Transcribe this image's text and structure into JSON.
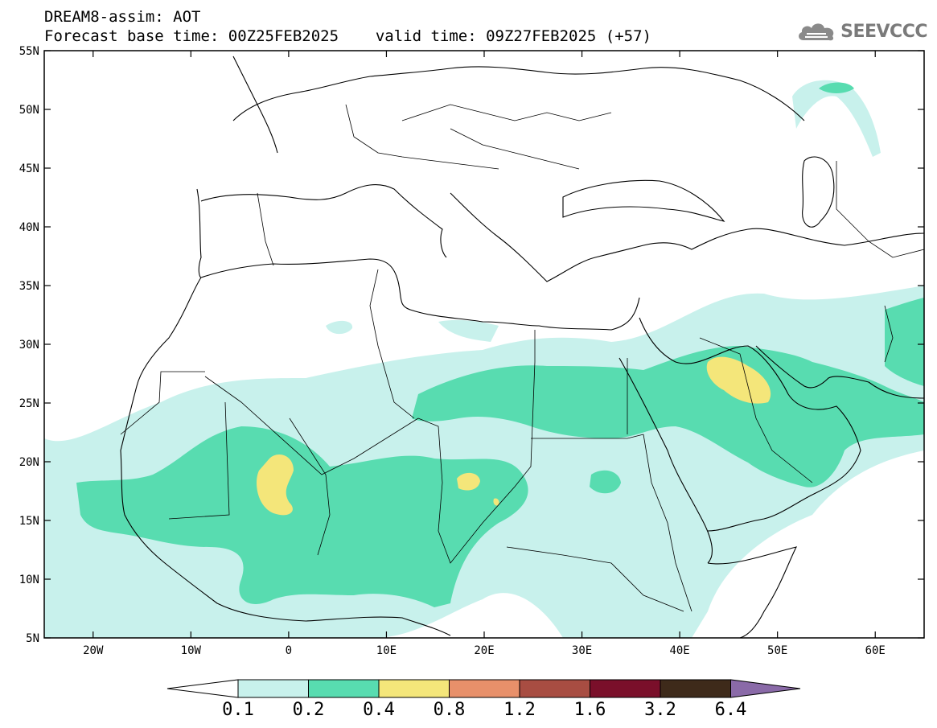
{
  "header": {
    "title": "DREAM8-assim: AOT",
    "base_time_label": "Forecast base time: 00Z25FEB2025",
    "valid_time_label": "valid time: 09Z27FEB2025 (+57)",
    "logo_text": "SEEVCCC",
    "logo_icon": "cloud-icon"
  },
  "map": {
    "lon_range": [
      -25,
      65
    ],
    "lat_range": [
      5,
      55
    ],
    "lat_ticks": [
      "55N",
      "50N",
      "45N",
      "40N",
      "35N",
      "30N",
      "25N",
      "20N",
      "15N",
      "10N",
      "5N"
    ],
    "lon_ticks": [
      "20W",
      "10W",
      "0",
      "10E",
      "20E",
      "30E",
      "40E",
      "50E",
      "60E"
    ]
  },
  "colorbar": {
    "labels": [
      "0.1",
      "0.2",
      "0.4",
      "0.8",
      "1.2",
      "1.6",
      "3.2",
      "6.4"
    ],
    "colors": [
      "#ffffff",
      "#c8f1ec",
      "#58dcb0",
      "#f4e67a",
      "#e8906a",
      "#a84d42",
      "#7a0f2a",
      "#3e2a1a",
      "#8a6aa8"
    ]
  }
}
